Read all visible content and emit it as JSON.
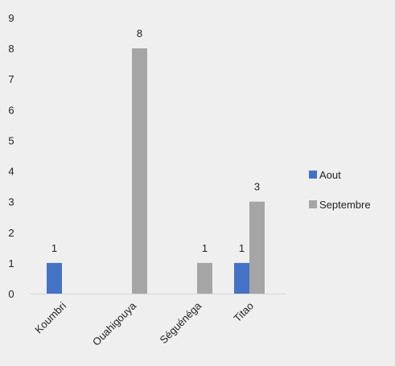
{
  "chart_data": {
    "type": "bar",
    "categories": [
      "Koumbri",
      "Ouahigouya",
      "Séguénéga",
      "Titao"
    ],
    "series": [
      {
        "name": "Aout",
        "color": "#4472c4",
        "values": [
          1,
          null,
          null,
          1
        ]
      },
      {
        "name": "Septembre",
        "color": "#a5a5a5",
        "values": [
          null,
          8,
          1,
          3
        ]
      }
    ],
    "y_ticks": [
      "0",
      "1",
      "2",
      "3",
      "4",
      "5",
      "6",
      "7",
      "8",
      "9"
    ],
    "ylim": [
      0,
      9
    ],
    "data_labels": [
      {
        "category": "Koumbri",
        "series": "Aout",
        "text": "1"
      },
      {
        "category": "Ouahigouya",
        "series": "Septembre",
        "text": "8"
      },
      {
        "category": "Séguénéga",
        "series": "Septembre",
        "text": "1"
      },
      {
        "category": "Titao",
        "series": "Aout",
        "text": "1"
      },
      {
        "category": "Titao",
        "series": "Septembre",
        "text": "3"
      }
    ],
    "legend_position": "right",
    "grid": false,
    "title": "",
    "xlabel": "",
    "ylabel": ""
  }
}
